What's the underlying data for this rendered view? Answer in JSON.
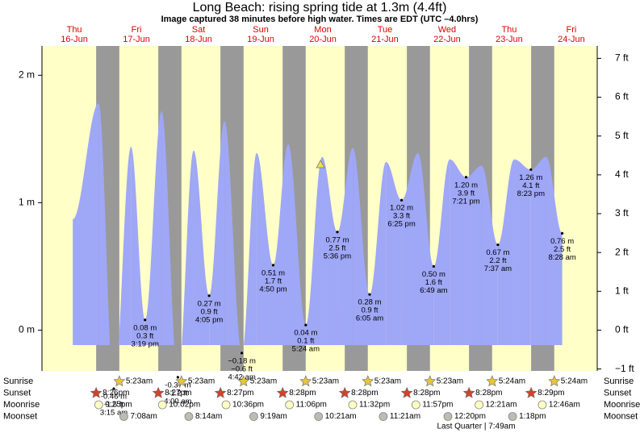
{
  "chart_data": {
    "type": "tide",
    "title": "Long Beach: rising  spring tide at 1.3m (4.4ft)",
    "subtitle": "Image captured 38 minutes before high water. Times are EDT (UTC –4.0hrs)",
    "days": [
      {
        "name": "Thu",
        "date": "16-Jun"
      },
      {
        "name": "Fri",
        "date": "17-Jun"
      },
      {
        "name": "Sat",
        "date": "18-Jun"
      },
      {
        "name": "Sun",
        "date": "19-Jun"
      },
      {
        "name": "Mon",
        "date": "20-Jun"
      },
      {
        "name": "Tue",
        "date": "21-Jun"
      },
      {
        "name": "Wed",
        "date": "22-Jun"
      },
      {
        "name": "Thu",
        "date": "23-Jun"
      },
      {
        "name": "Fri",
        "date": "24-Jun"
      }
    ],
    "xlim": [
      -0.5,
      214
    ],
    "ylim": [
      -0.32,
      2.23
    ],
    "yticks": [
      {
        "value": 0,
        "label": "0 m"
      },
      {
        "value": 1,
        "label": "1 m"
      },
      {
        "value": 2,
        "label": "2 m"
      }
    ],
    "y2lim": [
      -1.05,
      7.32
    ],
    "y2ticks": [
      {
        "value": -1,
        "label": "−1 ft"
      },
      {
        "value": 0,
        "label": "0 ft"
      },
      {
        "value": 1,
        "label": "1 ft"
      },
      {
        "value": 2,
        "label": "2 ft"
      },
      {
        "value": 3,
        "label": "3 ft"
      },
      {
        "value": 4,
        "label": "4 ft"
      },
      {
        "value": 5,
        "label": "5 ft"
      },
      {
        "value": 6,
        "label": "6 ft"
      },
      {
        "value": 7,
        "label": "7 ft"
      }
    ],
    "tide": {
      "color": "#9fa7f7",
      "x": [
        11.4,
        21.4,
        27.25,
        33.9,
        39.32,
        45.7,
        52.0,
        58.1,
        64.08,
        70.0,
        76.7,
        82.4,
        88.83,
        94.6,
        101.4,
        107.7,
        113.6,
        119.6,
        126.08,
        132.4,
        138.42,
        144.8,
        150.82,
        157.0,
        163.35,
        169.4,
        175.62,
        181.9,
        188.38,
        194.3,
        200.47
      ],
      "values": [
        0.87,
        1.78,
        -0.46,
        1.44,
        0.08,
        1.72,
        -0.37,
        1.41,
        0.27,
        1.64,
        -0.18,
        1.39,
        0.51,
        1.46,
        0.04,
        1.36,
        0.77,
        1.43,
        0.28,
        1.32,
        1.02,
        1.39,
        0.5,
        1.34,
        1.2,
        1.29,
        0.67,
        1.34,
        1.26,
        1.36,
        0.76
      ],
      "value_labels": [
        null,
        null,
        "-0.46 m",
        null,
        "0.08 m",
        null,
        "-0.37 m",
        null,
        "0.27 m",
        null,
        "−0.18 m",
        null,
        "0.51 m",
        null,
        "0.04 m",
        null,
        "0.77 m",
        null,
        "0.28 m",
        null,
        "1.02 m",
        null,
        "0.50 m",
        null,
        "1.20 m",
        null,
        "0.67 m",
        null,
        "1.26 m",
        null,
        "0.76 m"
      ],
      "ft_labels": [
        null,
        null,
        "-1.5 ft",
        null,
        "0.3 ft",
        null,
        "-1.2 ft",
        null,
        "0.9 ft",
        null,
        "−0.6 ft",
        null,
        "1.7 ft",
        null,
        "0.1 ft",
        null,
        "2.5 ft",
        null,
        "0.9 ft",
        null,
        "3.3 ft",
        null,
        "1.6 ft",
        null,
        "3.9 ft",
        null,
        "2.2 ft",
        null,
        "4.1 ft",
        null,
        "2.5 ft"
      ],
      "time_labels": [
        null,
        null,
        "3:15 am",
        null,
        "3:19 pm",
        null,
        "4:00 am",
        null,
        "4:05 pm",
        null,
        "4:42 am",
        null,
        "4:50 pm",
        null,
        "5:24 am",
        null,
        "5:36 pm",
        null,
        "6:05 am",
        null,
        "6:25 pm",
        null,
        "6:49 am",
        null,
        "7:21 pm",
        null,
        "7:37 am",
        null,
        "8:23 pm",
        null,
        "8:28 am"
      ]
    },
    "now": {
      "x": 107.1,
      "value": 1.3,
      "color": "#f0e040"
    },
    "day_color": "#ffffc8",
    "night_color": "#999999",
    "rows": [
      {
        "name": "Sunrise",
        "marker": "star",
        "color": "#e8c63a",
        "x": [
          29.38,
          53.38,
          77.38,
          101.38,
          125.38,
          149.38,
          173.4,
          197.4
        ],
        "labels": [
          "5:23am",
          "5:23am",
          "5:23am",
          "5:23am",
          "5:23am",
          "5:23am",
          "5:24am",
          "5:24am"
        ]
      },
      {
        "name": "Sunset",
        "marker": "star",
        "color": "#d0442a",
        "x": [
          20.43,
          44.43,
          68.45,
          92.47,
          116.47,
          140.47,
          164.47,
          188.47
        ],
        "labels": [
          "8:26pm",
          "8:27pm",
          "8:27pm",
          "8:28pm",
          "8:28pm",
          "8:28pm",
          "8:28pm",
          "8:29pm"
        ]
      },
      {
        "name": "Moonrise",
        "marker": "circle",
        "color": "#ffffc0",
        "x": [
          21.42,
          46.03,
          70.6,
          95.1,
          119.53,
          143.95,
          168.35,
          192.77
        ],
        "labels": [
          "9:25pm",
          "10:02pm",
          "10:36pm",
          "11:06pm",
          "11:32pm",
          "11:57pm",
          "12:21am",
          "12:46am"
        ]
      },
      {
        "name": "Moonset",
        "marker": "circle",
        "color": "#bcbcb0",
        "x": [
          31.13,
          56.23,
          81.32,
          106.35,
          131.35,
          156.33,
          181.3
        ],
        "labels": [
          "7:08am",
          "8:14am",
          "9:19am",
          "10:21am",
          "11:21am",
          "12:20pm",
          "1:18pm"
        ]
      }
    ],
    "phase": "Last Quarter | 7:49am"
  }
}
